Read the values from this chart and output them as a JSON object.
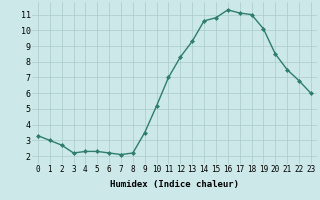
{
  "x": [
    0,
    1,
    2,
    3,
    4,
    5,
    6,
    7,
    8,
    9,
    10,
    11,
    12,
    13,
    14,
    15,
    16,
    17,
    18,
    19,
    20,
    21,
    22,
    23
  ],
  "y": [
    3.3,
    3.0,
    2.7,
    2.2,
    2.3,
    2.3,
    2.2,
    2.1,
    2.2,
    3.5,
    5.2,
    7.0,
    8.3,
    9.3,
    10.6,
    10.8,
    11.3,
    11.1,
    11.0,
    10.1,
    8.5,
    7.5,
    6.8,
    6.0
  ],
  "xlabel": "Humidex (Indice chaleur)",
  "bg_color": "#cce8e8",
  "line_color": "#2e7d6e",
  "marker": "D",
  "marker_size": 2.0,
  "grid_color": "#aacccc",
  "ylim": [
    1.5,
    11.8
  ],
  "xlim": [
    -0.5,
    23.5
  ],
  "yticks": [
    2,
    3,
    4,
    5,
    6,
    7,
    8,
    9,
    10,
    11
  ],
  "xticks": [
    0,
    1,
    2,
    3,
    4,
    5,
    6,
    7,
    8,
    9,
    10,
    11,
    12,
    13,
    14,
    15,
    16,
    17,
    18,
    19,
    20,
    21,
    22,
    23
  ],
  "tick_fontsize": 5.5,
  "xlabel_fontsize": 6.5,
  "line_width": 1.0
}
